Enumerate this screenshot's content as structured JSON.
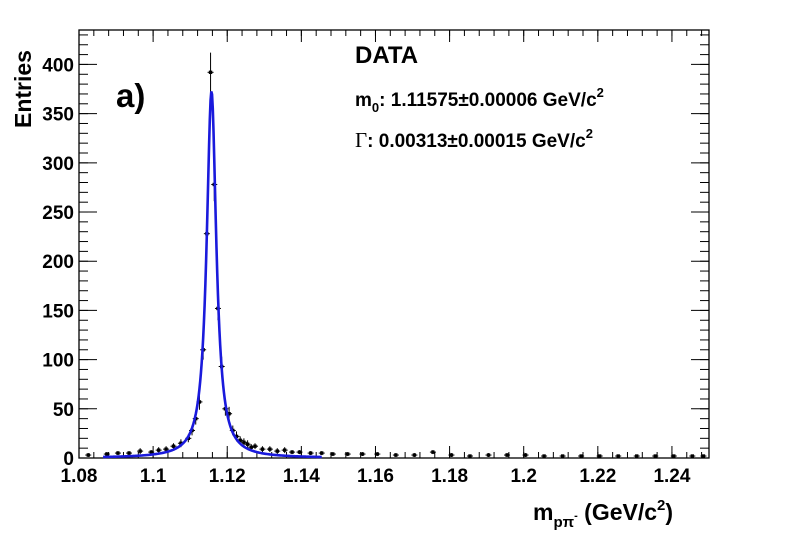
{
  "chart_data": {
    "type": "scatter",
    "panel_label": "a)",
    "annotations": {
      "title": "DATA",
      "mass_prefix": "m",
      "mass_sub": "0",
      "mass_text": ": 1.11575±0.00006 GeV/c",
      "mass_sup": "2",
      "width_prefix": "Γ",
      "width_text": ": 0.00313±0.00015 GeV/c",
      "width_sup": "2"
    },
    "ylabel": "Entries",
    "xlabel": {
      "m": "m",
      "sub": "pπ",
      "subsup": "-",
      "rest1": " (GeV/c",
      "sup": "2",
      "rest2": ")"
    },
    "xlim": [
      1.08,
      1.25
    ],
    "ylim": [
      0,
      435
    ],
    "xticks": [
      "1.08",
      "1.1",
      "1.12",
      "1.14",
      "1.16",
      "1.18",
      "1.2",
      "1.22",
      "1.24"
    ],
    "xtick_values": [
      1.08,
      1.1,
      1.12,
      1.14,
      1.16,
      1.18,
      1.2,
      1.22,
      1.24
    ],
    "yticks": [
      "0",
      "50",
      "100",
      "150",
      "200",
      "250",
      "300",
      "350",
      "400"
    ],
    "ytick_values": [
      0,
      50,
      100,
      150,
      200,
      250,
      300,
      350,
      400
    ],
    "fit": {
      "m0": 1.11575,
      "gamma": 0.00313,
      "peak": 373,
      "color": "#1a1adc"
    },
    "series": [
      {
        "marker_color": "#000000",
        "x": [
          1.0825,
          1.0875,
          1.0905,
          1.0935,
          1.0965,
          1.0995,
          1.1015,
          1.1035,
          1.1055,
          1.1075,
          1.1095,
          1.1105,
          1.1115,
          1.1125,
          1.1135,
          1.1145,
          1.1155,
          1.1165,
          1.1175,
          1.1185,
          1.1195,
          1.1205,
          1.1215,
          1.1225,
          1.1235,
          1.1245,
          1.1255,
          1.1265,
          1.1275,
          1.1295,
          1.1315,
          1.1335,
          1.1355,
          1.1375,
          1.1395,
          1.1425,
          1.1455,
          1.1485,
          1.1525,
          1.1565,
          1.1605,
          1.1655,
          1.1705,
          1.1755,
          1.1805,
          1.1855,
          1.1905,
          1.1955,
          1.2005,
          1.2055,
          1.2105,
          1.2155,
          1.2205,
          1.2255,
          1.2305,
          1.2355,
          1.2405,
          1.2455,
          1.2485
        ],
        "y": [
          3,
          4,
          5,
          5,
          7,
          6,
          8,
          9,
          12,
          15,
          20,
          28,
          40,
          57,
          110,
          228,
          392,
          278,
          152,
          93,
          50,
          45,
          28,
          22,
          18,
          16,
          14,
          11,
          12,
          9,
          9,
          7,
          8,
          6,
          6,
          5,
          5,
          4,
          4,
          4,
          4,
          3,
          3,
          6,
          3,
          2,
          3,
          3,
          3,
          2,
          2,
          2,
          2,
          2,
          2,
          2,
          2,
          2,
          2
        ],
        "errors": [
          2,
          2,
          2,
          2,
          3,
          2,
          3,
          3,
          3,
          4,
          4,
          5,
          6,
          8,
          10,
          15,
          20,
          17,
          12,
          10,
          7,
          7,
          5,
          5,
          4,
          4,
          4,
          3,
          3,
          3,
          3,
          3,
          3,
          2,
          2,
          2,
          2,
          2,
          2,
          2,
          2,
          2,
          2,
          2,
          2,
          1,
          2,
          2,
          2,
          1,
          1,
          1,
          1,
          1,
          1,
          1,
          1,
          1,
          1
        ]
      }
    ]
  }
}
